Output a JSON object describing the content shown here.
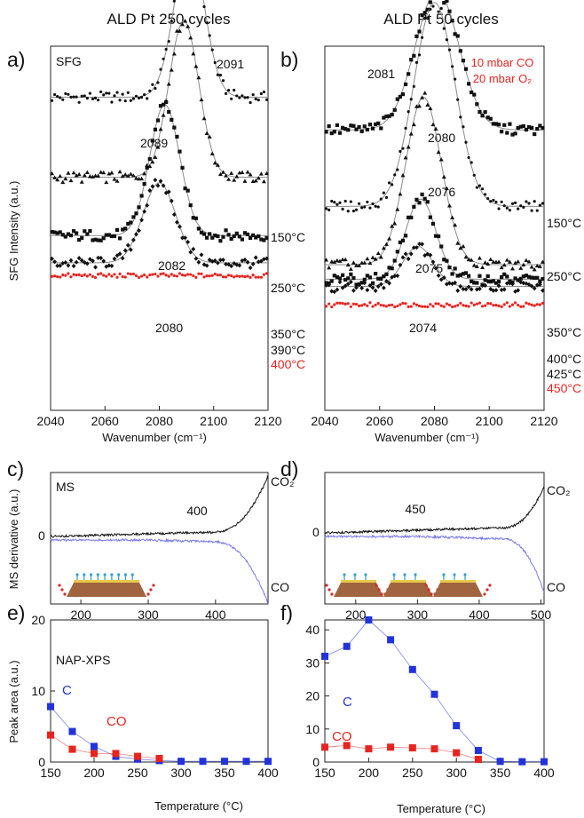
{
  "figure": {
    "col_titles": [
      "ALD Pt  250 cycles",
      "ALD Pt  50 cycles"
    ],
    "panel_letters": [
      "a)",
      "b)",
      "c)",
      "d)",
      "e)",
      "f)"
    ],
    "sfg_ylabel": "SFG Intensity (a.u.)",
    "ms_ylabel": "MS derivative (a.u.)",
    "xps_ylabel": "Peak area (a.u.)",
    "sfg_xlabel": "Wavenumber (cm⁻¹)",
    "temp_xlabel": "Temperature (°C)",
    "sfg_label": "SFG",
    "ms_label": "MS",
    "xps_label": "NAP-XPS",
    "gas_line1": "10 mbar CO",
    "gas_line2": "20 mbar O₂"
  },
  "colors": {
    "black": "#111111",
    "red": "#e8241f",
    "blue": "#2233dd",
    "ms_co": "#7a7aee",
    "fit": "#8a8a8a"
  },
  "chart_data": [
    {
      "id": "a",
      "type": "line",
      "title": "ALD Pt  250 cycles",
      "xlabel": "Wavenumber (cm⁻¹)",
      "ylabel": "SFG Intensity (a.u.)",
      "xlim": [
        2040,
        2120
      ],
      "xticks": [
        "2040",
        "2060",
        "2080",
        "2100",
        "2120"
      ],
      "series": [
        {
          "temp": "150°C",
          "marker": "circle",
          "color": "black",
          "peak": 2091,
          "peak_label": "2091",
          "width": 5.5,
          "amplitude": 0.42,
          "baseline": 0.86
        },
        {
          "temp": "250°C",
          "marker": "triangle",
          "color": "black",
          "peak": 2089,
          "peak_label": "2089",
          "width": 5.5,
          "amplitude": 0.43,
          "baseline": 0.64
        },
        {
          "temp": "350°C",
          "marker": "square",
          "color": "black",
          "peak": 2082,
          "peak_label": "2082",
          "width": 5.5,
          "amplitude": 0.36,
          "baseline": 0.48
        },
        {
          "temp": "390°C",
          "marker": "diamond",
          "color": "black",
          "peak": 2080,
          "peak_label": "2080",
          "width": 6.0,
          "amplitude": 0.22,
          "baseline": 0.405
        },
        {
          "temp": "400°C",
          "marker": "circle",
          "color": "red",
          "peak": null,
          "peak_label": "",
          "width": 0,
          "amplitude": 0,
          "baseline": 0.37
        }
      ]
    },
    {
      "id": "b",
      "type": "line",
      "title": "ALD Pt  50 cycles",
      "xlabel": "Wavenumber (cm⁻¹)",
      "ylabel": "",
      "xlim": [
        2040,
        2120
      ],
      "xticks": [
        "2040",
        "2060",
        "2080",
        "2100",
        "2120"
      ],
      "series": [
        {
          "temp": "150°C",
          "marker": "square",
          "color": "black",
          "peak": 2081,
          "peak_label": "2081",
          "width": 8.0,
          "amplitude": 0.38,
          "baseline": 0.77
        },
        {
          "temp": "250°C",
          "marker": "circle",
          "color": "black",
          "peak": 2080,
          "peak_label": "2080",
          "width": 7.5,
          "amplitude": 0.56,
          "baseline": 0.56
        },
        {
          "temp": "350°C",
          "marker": "triangle",
          "color": "black",
          "peak": 2076,
          "peak_label": "2076",
          "width": 6.5,
          "amplitude": 0.46,
          "baseline": 0.4
        },
        {
          "temp": "400°C",
          "marker": "square",
          "color": "black",
          "peak": 2075,
          "peak_label": "2075",
          "width": 5.5,
          "amplitude": 0.22,
          "baseline": 0.36
        },
        {
          "temp": "425°C",
          "marker": "diamond",
          "color": "black",
          "peak": 2074,
          "peak_label": "2074",
          "width": 5.5,
          "amplitude": 0.11,
          "baseline": 0.34
        },
        {
          "temp": "450°C",
          "marker": "circle",
          "color": "red",
          "peak": null,
          "peak_label": "",
          "width": 0,
          "amplitude": 0,
          "baseline": 0.29
        }
      ]
    },
    {
      "id": "c",
      "type": "line",
      "ylabel": "MS derivative (a.u.)",
      "xlabel": "",
      "xlim": [
        155,
        478
      ],
      "xticks": [
        "200",
        "300",
        "400"
      ],
      "annotation": "400",
      "zero_label": "0",
      "series": [
        {
          "name": "CO₂",
          "color": "black",
          "onset": 400,
          "end": 478,
          "final": 0.82
        },
        {
          "name": "CO",
          "color": "ms_co",
          "onset": 400,
          "end": 478,
          "final": -0.9
        }
      ]
    },
    {
      "id": "d",
      "type": "line",
      "ylabel": "",
      "xlabel": "",
      "xlim": [
        150,
        505
      ],
      "xticks": [
        "200",
        "300",
        "400",
        "500"
      ],
      "annotation": "450",
      "zero_label": "0",
      "series": [
        {
          "name": "CO₂",
          "color": "black",
          "onset": 440,
          "end": 505,
          "final": 0.6
        },
        {
          "name": "CO",
          "color": "ms_co",
          "onset": 440,
          "end": 505,
          "final": -0.78
        }
      ]
    },
    {
      "id": "e",
      "type": "scatter",
      "xlabel": "Temperature (°C)",
      "ylabel": "Peak area (a.u.)",
      "xlim": [
        150,
        400
      ],
      "ylim": [
        0,
        20
      ],
      "xticks": [
        "150",
        "200",
        "250",
        "300",
        "350",
        "400"
      ],
      "yticks": [
        "0",
        "10",
        "20"
      ],
      "series": [
        {
          "name": "C",
          "color": "blue",
          "x": [
            150,
            175,
            200,
            225,
            250,
            275,
            300,
            325,
            350,
            375,
            400
          ],
          "y": [
            7.8,
            4.3,
            2.2,
            0.8,
            0.4,
            0.2,
            0.1,
            0.1,
            0.1,
            0.1,
            0.1
          ]
        },
        {
          "name": "CO",
          "color": "red",
          "x": [
            150,
            175,
            200,
            225,
            250,
            275
          ],
          "y": [
            3.8,
            1.8,
            1.2,
            1.2,
            0.8,
            0.5
          ]
        }
      ]
    },
    {
      "id": "f",
      "type": "scatter",
      "xlabel": "Temperature (°C)",
      "ylabel": "",
      "xlim": [
        150,
        400
      ],
      "ylim": [
        0,
        43
      ],
      "xticks": [
        "150",
        "200",
        "250",
        "300",
        "350",
        "400"
      ],
      "yticks": [
        "0",
        "10",
        "20",
        "30",
        "40"
      ],
      "series": [
        {
          "name": "C",
          "color": "blue",
          "x": [
            150,
            175,
            200,
            225,
            250,
            275,
            300,
            325,
            350,
            375,
            400
          ],
          "y": [
            32,
            35,
            43,
            37,
            28,
            20.5,
            11,
            3.5,
            0.2,
            0.1,
            0.1
          ]
        },
        {
          "name": "CO",
          "color": "red",
          "x": [
            150,
            175,
            200,
            225,
            250,
            275,
            300,
            325
          ],
          "y": [
            4.5,
            5,
            4,
            4.5,
            4.3,
            4,
            2.8,
            0.8
          ]
        }
      ]
    }
  ]
}
